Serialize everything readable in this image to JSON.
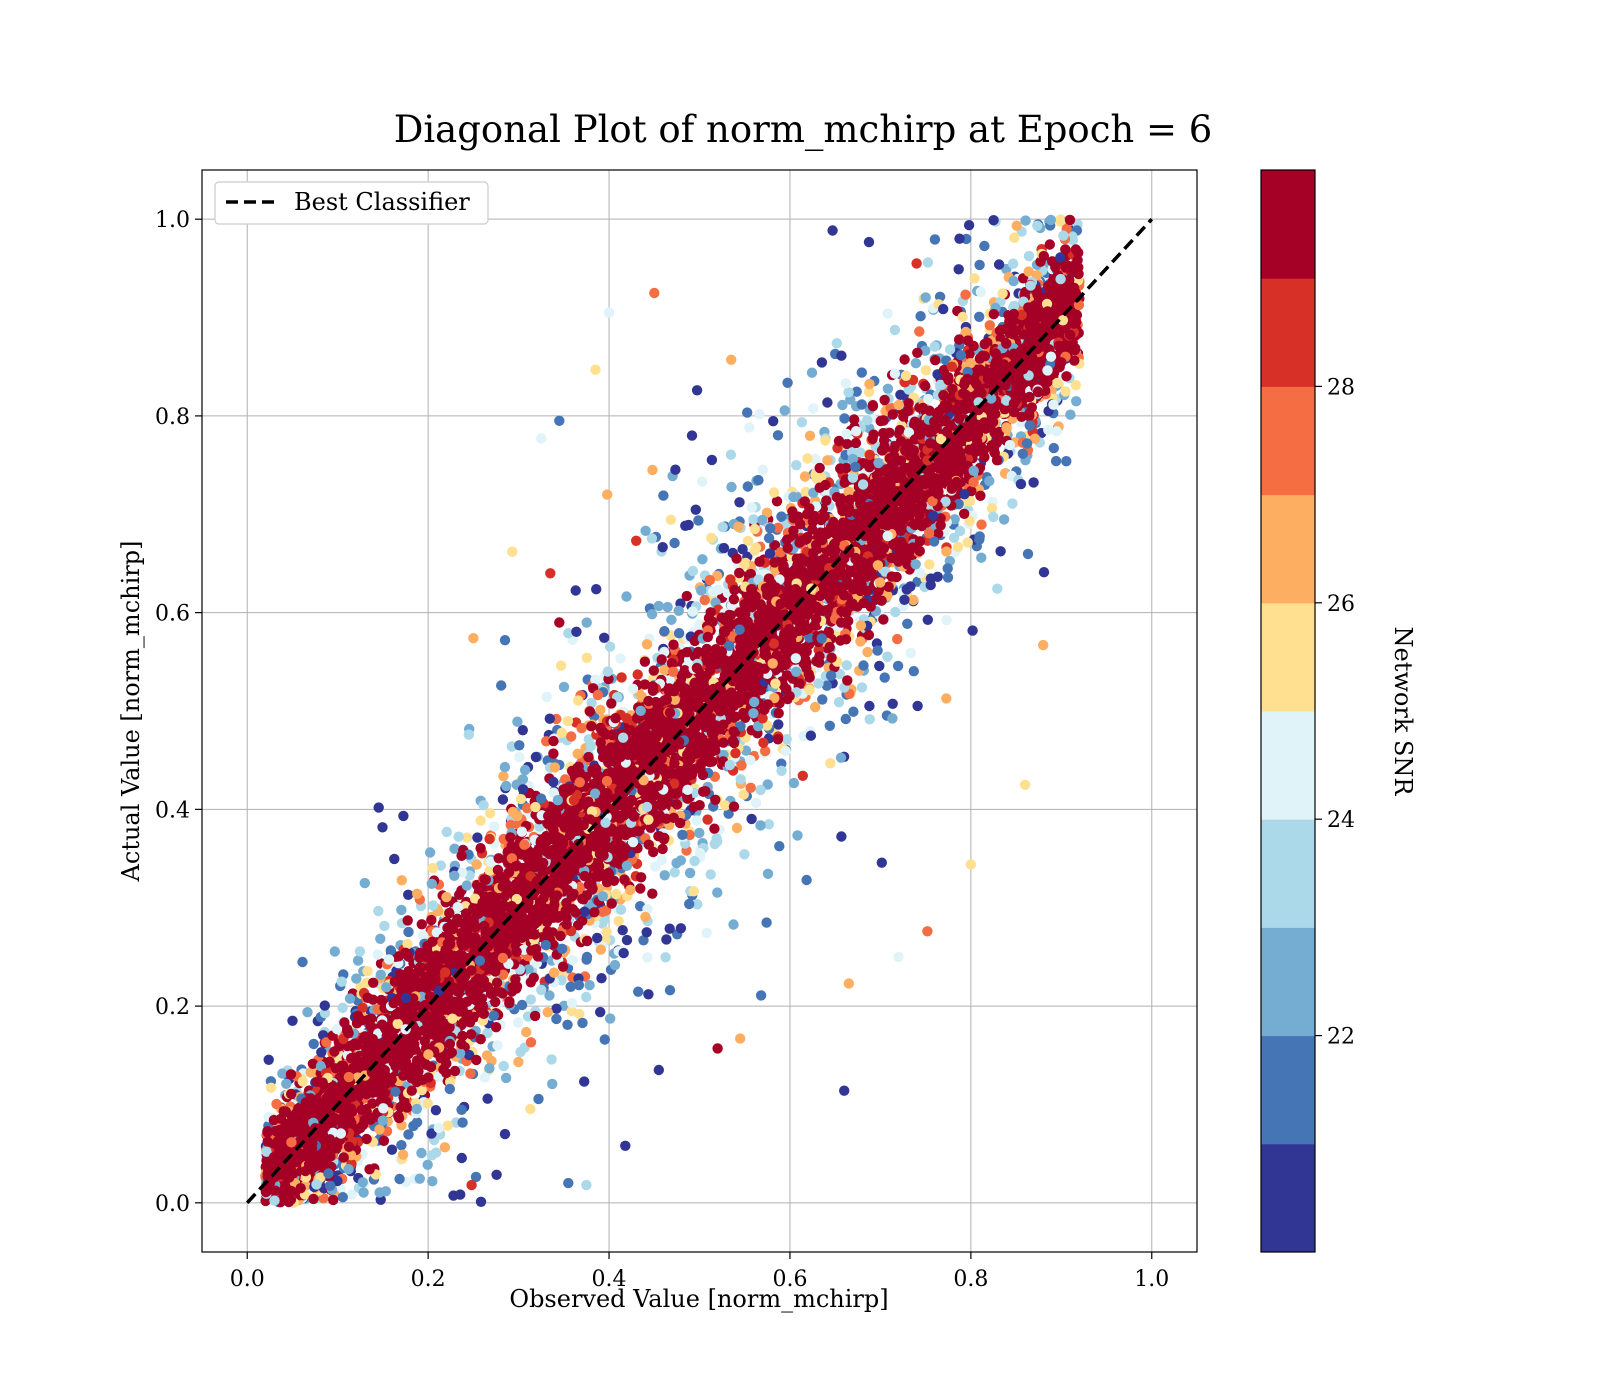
{
  "chart_data": {
    "type": "scatter",
    "title": "Diagonal Plot of norm_mchirp at Epoch = 6",
    "xlabel": "Observed Value [norm_mchirp]",
    "ylabel": "Actual Value [norm_mchirp]",
    "xlim": [
      -0.05,
      1.05
    ],
    "ylim": [
      -0.05,
      1.05
    ],
    "xticks": [
      "0.0",
      "0.2",
      "0.4",
      "0.6",
      "0.8",
      "1.0"
    ],
    "yticks": [
      "0.0",
      "0.2",
      "0.4",
      "0.6",
      "0.8",
      "1.0"
    ],
    "grid": true,
    "legend": {
      "placement": "top-left",
      "entries": [
        {
          "label": "Best Classifier",
          "style": "dashed",
          "color": "#000000"
        }
      ]
    },
    "reference_line": {
      "label": "Best Classifier",
      "x": [
        0.0,
        1.0
      ],
      "y": [
        0.0,
        1.0
      ]
    },
    "colorbar": {
      "label": "Network SNR",
      "range": [
        20,
        30
      ],
      "ticks": [
        "22",
        "24",
        "26",
        "28"
      ],
      "tick_values": [
        22,
        24,
        26,
        28
      ],
      "colormap": "RdYlBu_r",
      "levels": [
        "#313695",
        "#4575b4",
        "#74add1",
        "#abd9e9",
        "#e0f3f8",
        "#fee090",
        "#fdae61",
        "#f46d43",
        "#d73027",
        "#a50026"
      ]
    },
    "distribution": {
      "relation": "y ≈ x",
      "x_range": [
        0.02,
        0.92
      ],
      "y_range": [
        0.0,
        1.0
      ],
      "high_snr_spread": 0.03,
      "low_snr_spread": 0.1,
      "point_count": 9000
    },
    "outliers": [
      {
        "x": 0.45,
        "y": 0.925,
        "snr": 27.5
      },
      {
        "x": 0.535,
        "y": 0.857,
        "snr": 26.5
      },
      {
        "x": 0.4,
        "y": 0.905,
        "snr": 24.5
      },
      {
        "x": 0.385,
        "y": 0.847,
        "snr": 25.0
      },
      {
        "x": 0.345,
        "y": 0.795,
        "snr": 21.0
      },
      {
        "x": 0.325,
        "y": 0.777,
        "snr": 24.5
      },
      {
        "x": 0.448,
        "y": 0.745,
        "snr": 26.5
      },
      {
        "x": 0.398,
        "y": 0.72,
        "snr": 26.0
      },
      {
        "x": 0.43,
        "y": 0.673,
        "snr": 28.5
      },
      {
        "x": 0.293,
        "y": 0.662,
        "snr": 25.5
      },
      {
        "x": 0.335,
        "y": 0.64,
        "snr": 28.5
      },
      {
        "x": 0.345,
        "y": 0.59,
        "snr": 29.5
      },
      {
        "x": 0.285,
        "y": 0.572,
        "snr": 21.5
      },
      {
        "x": 0.25,
        "y": 0.574,
        "snr": 26.5
      },
      {
        "x": 0.245,
        "y": 0.476,
        "snr": 23.5
      },
      {
        "x": 0.66,
        "y": 0.114,
        "snr": 20.5
      },
      {
        "x": 0.418,
        "y": 0.058,
        "snr": 20.5
      },
      {
        "x": 0.355,
        "y": 0.02,
        "snr": 21.0
      },
      {
        "x": 0.375,
        "y": 0.018,
        "snr": 23.5
      },
      {
        "x": 0.455,
        "y": 0.135,
        "snr": 20.5
      },
      {
        "x": 0.545,
        "y": 0.167,
        "snr": 26.5
      },
      {
        "x": 0.52,
        "y": 0.157,
        "snr": 29.5
      },
      {
        "x": 0.665,
        "y": 0.223,
        "snr": 26.5
      },
      {
        "x": 0.752,
        "y": 0.276,
        "snr": 27.5
      },
      {
        "x": 0.86,
        "y": 0.425,
        "snr": 25.0
      },
      {
        "x": 0.88,
        "y": 0.567,
        "snr": 26.5
      },
      {
        "x": 0.795,
        "y": 0.98,
        "snr": 21.0
      },
      {
        "x": 0.74,
        "y": 0.955,
        "snr": 28.5
      },
      {
        "x": 0.095,
        "y": 0.003,
        "snr": 29.5
      },
      {
        "x": 0.248,
        "y": 0.018,
        "snr": 28.5
      },
      {
        "x": 0.05,
        "y": 0.185,
        "snr": 20.5
      },
      {
        "x": 0.13,
        "y": 0.325,
        "snr": 22.5
      },
      {
        "x": 0.8,
        "y": 0.344,
        "snr": 25.5
      },
      {
        "x": 0.72,
        "y": 0.25,
        "snr": 24.0
      }
    ]
  }
}
